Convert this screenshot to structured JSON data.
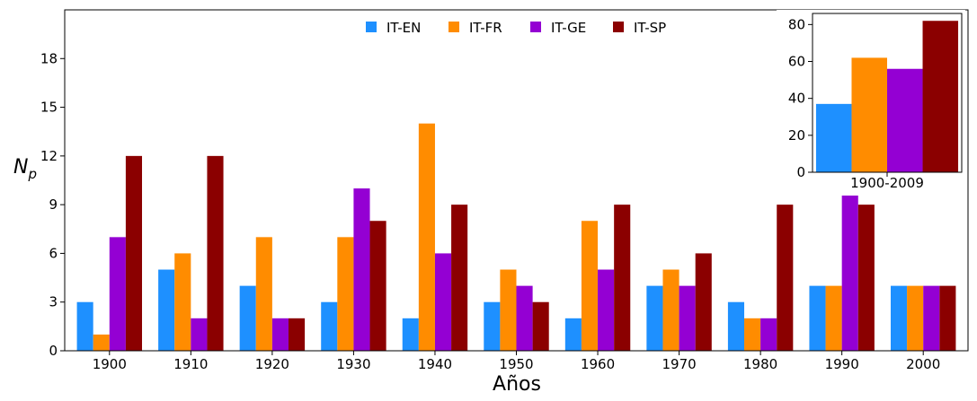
{
  "chart_data": [
    {
      "type": "bar",
      "categories": [
        "1900",
        "1910",
        "1920",
        "1930",
        "1940",
        "1950",
        "1960",
        "1970",
        "1980",
        "1990",
        "2000"
      ],
      "series": [
        {
          "name": "IT-EN",
          "color": "#1E90FF",
          "values": [
            3,
            5,
            4,
            3,
            2,
            3,
            2,
            4,
            3,
            4,
            4
          ]
        },
        {
          "name": "IT-FR",
          "color": "#FF8C00",
          "values": [
            1,
            6,
            7,
            7,
            14,
            5,
            8,
            5,
            2,
            4,
            4
          ]
        },
        {
          "name": "IT-GE",
          "color": "#9400D3",
          "values": [
            7,
            2,
            2,
            10,
            6,
            4,
            5,
            4,
            2,
            10,
            4
          ]
        },
        {
          "name": "IT-SP",
          "color": "#8B0000",
          "values": [
            12,
            12,
            2,
            8,
            9,
            3,
            9,
            6,
            9,
            9,
            4
          ]
        }
      ],
      "xlabel": "Años",
      "ylabel_main": "N",
      "ylabel_sub": "p",
      "ylim": [
        0,
        21
      ],
      "yticks": [
        "0",
        "3",
        "6",
        "9",
        "12",
        "15",
        "18"
      ],
      "legend": "top-center",
      "grid": false
    },
    {
      "type": "bar",
      "categories": [
        "1900-2009"
      ],
      "series": [
        {
          "name": "IT-EN",
          "color": "#1E90FF",
          "values": [
            37
          ]
        },
        {
          "name": "IT-FR",
          "color": "#FF8C00",
          "values": [
            62
          ]
        },
        {
          "name": "IT-GE",
          "color": "#9400D3",
          "values": [
            56
          ]
        },
        {
          "name": "IT-SP",
          "color": "#8B0000",
          "values": [
            82
          ]
        }
      ],
      "ylim": [
        0,
        86
      ],
      "yticks": [
        "0",
        "20",
        "40",
        "60",
        "80"
      ],
      "placement": "top-right inset",
      "grid": false
    }
  ]
}
